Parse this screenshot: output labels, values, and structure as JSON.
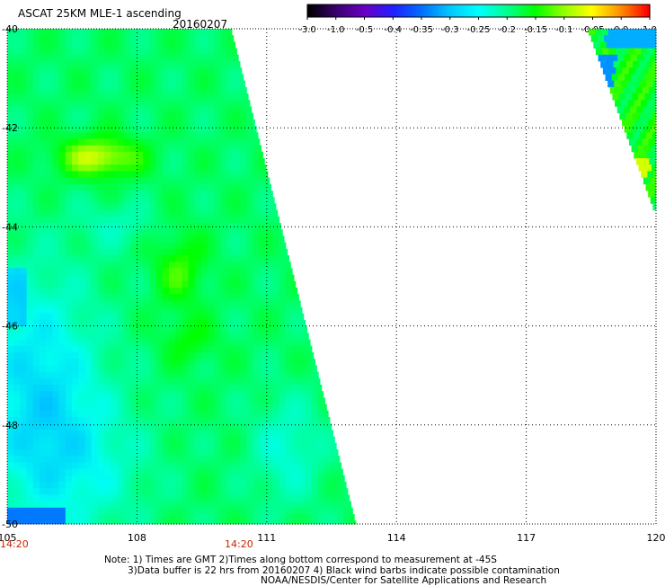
{
  "header": {
    "title": "ASCAT 25KM MLE-1 ascending",
    "date": "20160207"
  },
  "colorbar": {
    "labels": [
      "-3.0",
      "-1.0",
      "-0.5",
      "-0.4",
      "-0.35",
      "-0.3",
      "-0.25",
      "-0.2",
      "-0.15",
      "-0.1",
      "-0.05",
      "0.0",
      "1.0"
    ],
    "colors": [
      "#000000",
      "#3b0070",
      "#6a00c8",
      "#2020ff",
      "#0070ff",
      "#00c8ff",
      "#00ffff",
      "#00ff90",
      "#00ff00",
      "#90ff00",
      "#ffff00",
      "#ff9000",
      "#ff0000"
    ]
  },
  "map": {
    "lon_ticks": [
      "105",
      "108",
      "111",
      "114",
      "117",
      "120"
    ],
    "lat_ticks": [
      "-40",
      "-42",
      "-44",
      "-46",
      "-48",
      "-50"
    ],
    "time_labels": [
      "14:20",
      "14:20"
    ],
    "lon_range": [
      105,
      120
    ],
    "lat_range": [
      -50,
      -40
    ]
  },
  "footer": {
    "note1": "Note: 1) Times are GMT 2)Times along bottom correspond to measurement at -45S",
    "note2": "3)Data buffer is 22 hrs from 20160207 4) Black wind barbs indicate possible contamination",
    "credit": "NOAA/NESDIS/Center for Satellite Applications and Research"
  }
}
